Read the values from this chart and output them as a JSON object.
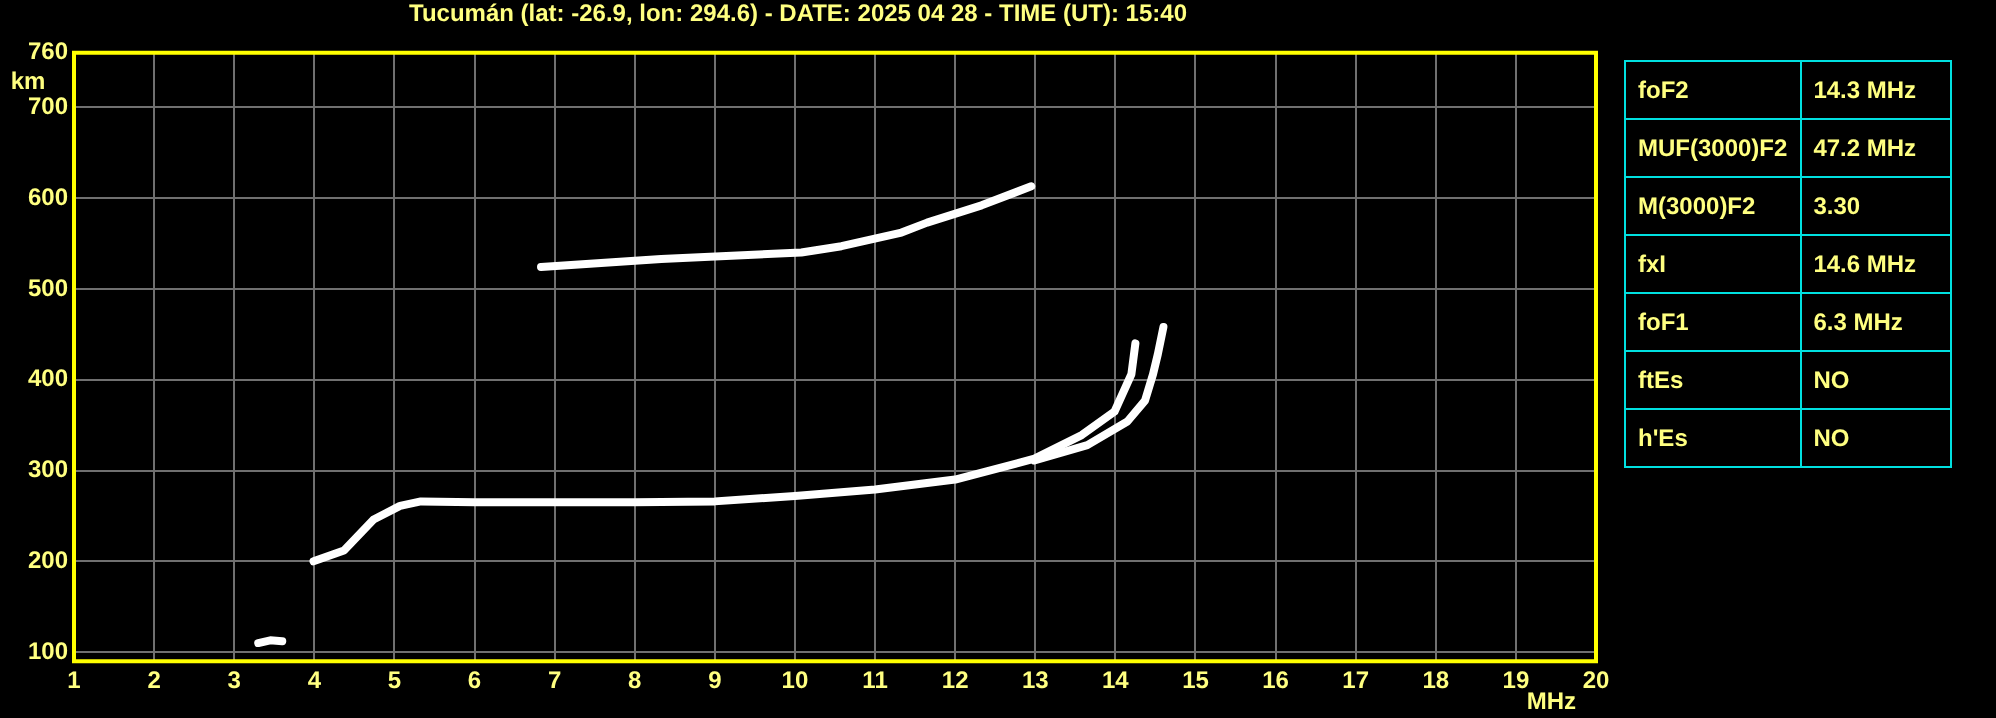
{
  "chart_data": {
    "type": "line",
    "title": "Tucumán (lat: -26.9, lon: 294.6) - DATE: 2025 04 28 - TIME (UT): 15:40",
    "xlabel": "MHz",
    "ylabel": "km",
    "xlim": [
      1,
      20
    ],
    "xticks": [
      1,
      2,
      3,
      4,
      5,
      6,
      7,
      8,
      9,
      10,
      11,
      12,
      13,
      14,
      15,
      16,
      17,
      18,
      19,
      20
    ],
    "ylim": [
      90,
      760
    ],
    "yticks": [
      100,
      200,
      300,
      400,
      500,
      600,
      700,
      760
    ],
    "grid": true,
    "legend": false,
    "marker": "none",
    "line_style": "solid",
    "series": [
      {
        "color": "#ffffff",
        "x": [
          3.99,
          4.37,
          4.74,
          5.07,
          5.33,
          6,
          7,
          8,
          9,
          10,
          11,
          12,
          12.99,
          13.58,
          13.99,
          14.2,
          14.25
        ],
        "values": [
          200,
          212,
          246,
          261,
          266,
          265,
          265,
          265,
          266,
          272,
          279,
          290,
          313,
          339,
          365,
          406,
          440
        ]
      },
      {
        "color": "#ffffff",
        "x": [
          12.99,
          13.65,
          14.15,
          14.37,
          14.47,
          14.53,
          14.6
        ],
        "values": [
          311,
          328,
          354,
          377,
          406,
          428,
          458
        ]
      },
      {
        "color": "#ffffff",
        "x": [
          6.83,
          8.33,
          10.08,
          10.58,
          11.33,
          11.65,
          12.33,
          12.95
        ],
        "values": [
          524,
          533,
          540,
          547,
          562,
          573,
          592,
          613
        ]
      },
      {
        "color": "#ffffff",
        "x": [
          3.3,
          3.45,
          3.6
        ],
        "values": [
          110,
          113,
          112
        ]
      }
    ],
    "annotations": [
      "foF2",
      "14.3 MHz",
      "MUF(3000)F2",
      "47.2 MHz",
      "M(3000)F2",
      "3.30",
      "fxI",
      "14.6 MHz",
      "foF1",
      "6.3 MHz",
      "ftEs",
      "NO",
      "h'Es",
      "NO"
    ]
  }
}
